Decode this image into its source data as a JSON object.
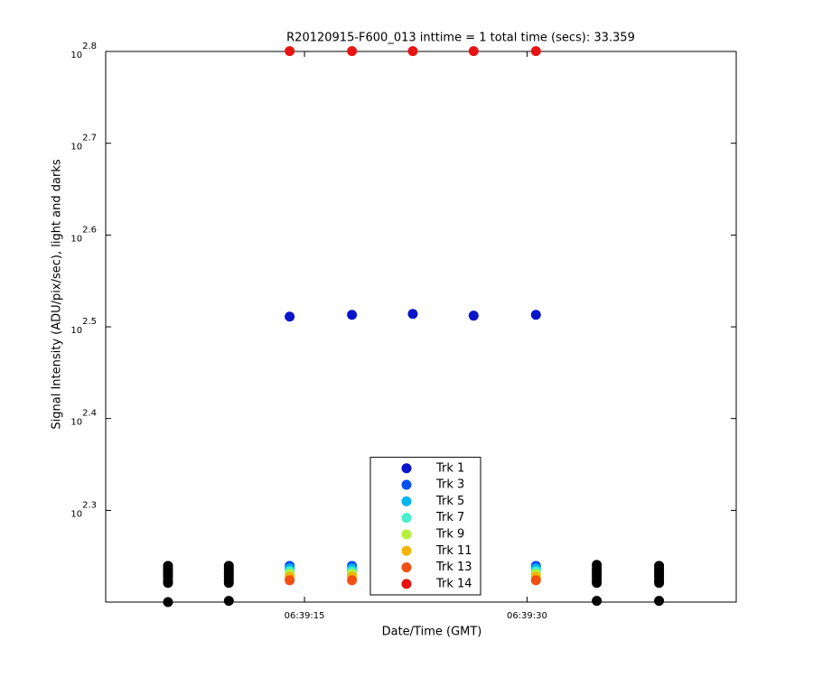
{
  "chart_data": {
    "type": "scatter",
    "title": "R20120915-F600_013 inttime = 1 total time (secs): 33.359",
    "x_label": "Date/Time (GMT)",
    "y_label": "Signal Intensity (ADU/pix/sec), light and darks",
    "log_y": true,
    "xlim": [
      1.6,
      44.1
    ],
    "xticks": [
      {
        "value": 15,
        "label": "06:39:15"
      },
      {
        "value": 30,
        "label": "06:39:30"
      }
    ],
    "ylim": [
      158.5,
      631
    ],
    "yticks": [
      {
        "value": 199.5,
        "label": "10^2.3"
      },
      {
        "value": 251.2,
        "label": "10^2.4"
      },
      {
        "value": 316.2,
        "label": "10^2.5"
      },
      {
        "value": 398.1,
        "label": "10^2.6"
      },
      {
        "value": 501.2,
        "label": "10^2.7"
      },
      {
        "value": 631,
        "label": "10^2.8"
      }
    ],
    "legend": "lower center",
    "series": [
      {
        "name": "Trk 1",
        "color": "#0a14c8",
        "x": [
          14.0,
          18.2,
          22.3,
          26.4,
          30.6
        ],
        "values": [
          324.4,
          325.9,
          326.6,
          325.2,
          325.9
        ]
      },
      {
        "name": "Trk 3",
        "color": "#0a50f0",
        "x": [
          14.0,
          18.2,
          30.6
        ],
        "values": [
          173.6,
          173.6,
          173.6
        ]
      },
      {
        "name": "Trk 5",
        "color": "#00b4f0",
        "x": [
          14.0,
          18.2,
          30.6
        ],
        "values": [
          172.4,
          172.4,
          172.4
        ]
      },
      {
        "name": "Trk 7",
        "color": "#46f0c8",
        "x": [
          14.0,
          18.2,
          30.6
        ],
        "values": [
          171.2,
          171.2,
          171.2
        ]
      },
      {
        "name": "Trk 9",
        "color": "#b4f03c",
        "x": [
          14.0,
          18.2,
          30.6
        ],
        "values": [
          170.1,
          170.1,
          170.1
        ]
      },
      {
        "name": "Trk 11",
        "color": "#f0b400",
        "x": [
          14.0,
          18.2,
          30.6
        ],
        "values": [
          168.9,
          168.9,
          168.9
        ]
      },
      {
        "name": "Trk 13",
        "color": "#f05014",
        "x": [
          14.0,
          18.2,
          30.6
        ],
        "values": [
          167.4,
          167.4,
          167.4
        ]
      },
      {
        "name": "Trk 14",
        "color": "#e61414",
        "x": [
          14.0,
          18.2,
          22.3,
          26.4,
          30.6
        ],
        "values": [
          631.5,
          631.5,
          631.5,
          631.5,
          631.5
        ]
      },
      {
        "color": "#000000",
        "x": [
          5.8,
          5.8,
          5.8,
          5.8,
          5.8,
          5.8,
          5.8,
          5.8,
          9.9,
          9.9,
          9.9,
          9.9,
          9.9,
          9.9,
          9.9,
          9.9,
          34.7,
          34.7,
          34.7,
          34.7,
          34.7,
          34.7,
          34.7,
          34.7,
          38.9,
          38.9,
          38.9,
          38.9,
          38.9,
          38.9,
          38.9,
          38.9
        ],
        "values": [
          173.6,
          172.4,
          171.2,
          170.1,
          168.9,
          167.4,
          166.3,
          158.5,
          173.6,
          172.4,
          171.2,
          170.1,
          168.9,
          167.4,
          166.3,
          159,
          174,
          172.4,
          171.2,
          170.1,
          168.9,
          167.4,
          166.3,
          159,
          173.6,
          172.4,
          171.2,
          170.1,
          168.9,
          167.4,
          166.3,
          159
        ]
      }
    ]
  }
}
